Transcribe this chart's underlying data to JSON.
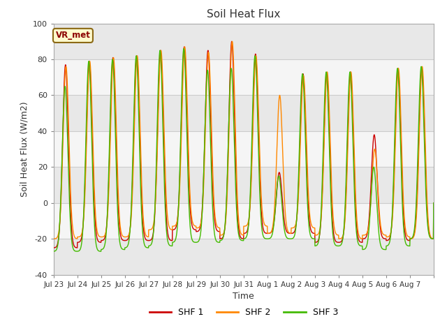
{
  "title": "Soil Heat Flux",
  "ylabel": "Soil Heat Flux (W/m2)",
  "xlabel": "Time",
  "ylim": [
    -40,
    100
  ],
  "yticks": [
    -40,
    -20,
    0,
    20,
    40,
    60,
    80,
    100
  ],
  "line_colors": [
    "#cc0000",
    "#ff8800",
    "#44bb00"
  ],
  "line_labels": [
    "SHF 1",
    "SHF 2",
    "SHF 3"
  ],
  "bg_color": "#ffffff",
  "plot_bg": "#ffffff",
  "vr_met_label": "VR_met",
  "xtick_labels": [
    "Jul 23",
    "Jul 24",
    "Jul 25",
    "Jul 26",
    "Jul 27",
    "Jul 28",
    "Jul 29",
    "Jul 30",
    "Jul 31",
    "Aug 1",
    "Aug 2",
    "Aug 3",
    "Aug 4",
    "Aug 5",
    "Aug 6",
    "Aug 7"
  ],
  "num_days": 16,
  "peaks_shf1": [
    77,
    79,
    81,
    82,
    85,
    87,
    85,
    90,
    83,
    17,
    72,
    72,
    73,
    38,
    75,
    75
  ],
  "peaks_shf2": [
    76,
    79,
    81,
    82,
    85,
    87,
    84,
    90,
    82,
    60,
    71,
    73,
    73,
    30,
    75,
    76
  ],
  "peaks_shf3": [
    65,
    79,
    80,
    82,
    85,
    86,
    74,
    75,
    82,
    15,
    72,
    73,
    73,
    20,
    75,
    76
  ],
  "troughs_shf1": [
    -25,
    -22,
    -21,
    -21,
    -21,
    -15,
    -16,
    -20,
    -17,
    -17,
    -17,
    -22,
    -22,
    -20,
    -21,
    -20
  ],
  "troughs_shf2": [
    -20,
    -19,
    -19,
    -19,
    -15,
    -13,
    -14,
    -18,
    -13,
    -17,
    -14,
    -18,
    -20,
    -18,
    -19,
    -20
  ],
  "troughs_shf3": [
    -27,
    -27,
    -26,
    -25,
    -24,
    -22,
    -22,
    -21,
    -20,
    -20,
    -20,
    -24,
    -24,
    -26,
    -24,
    -20
  ]
}
